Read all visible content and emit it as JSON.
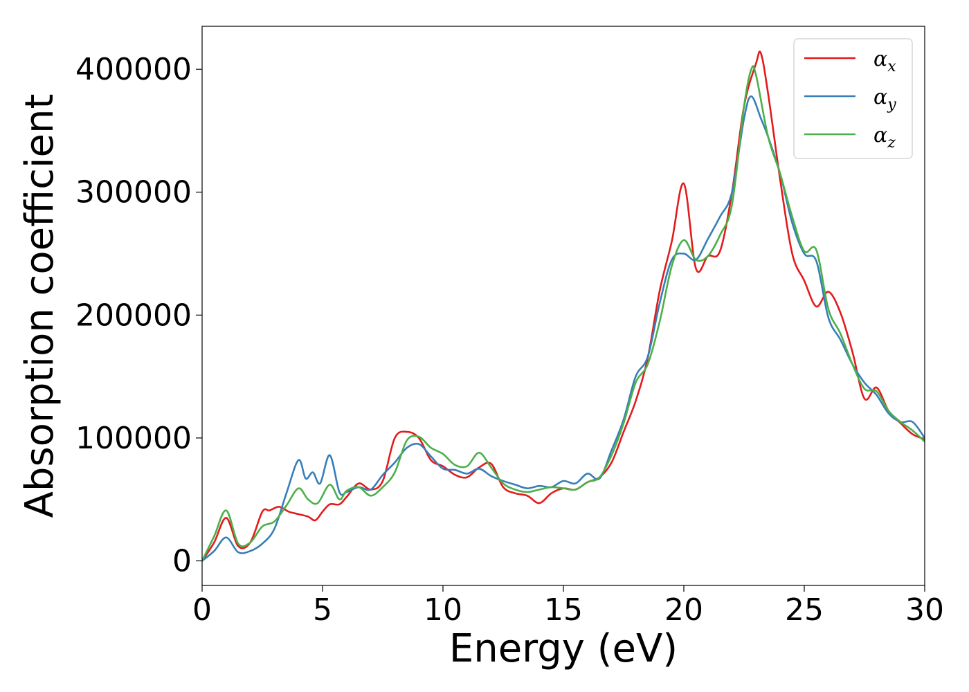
{
  "chart_data": {
    "type": "line",
    "xlabel": "Energy (eV)",
    "ylabel": "Absorption coefficient",
    "xlim": [
      0,
      30
    ],
    "ylim": [
      -20000,
      435000
    ],
    "xticks": [
      0,
      5,
      10,
      15,
      20,
      25,
      30
    ],
    "yticks": [
      0,
      100000,
      200000,
      300000,
      400000
    ],
    "grid": false,
    "legend_position": "top-right",
    "series": [
      {
        "name": "α_x",
        "symbol": "α",
        "subscript": "x",
        "color": "#e41a1c",
        "x": [
          0,
          0.5,
          1.0,
          1.5,
          2.0,
          2.5,
          2.8,
          3.2,
          3.6,
          4.0,
          4.4,
          4.7,
          5.0,
          5.3,
          5.7,
          6.0,
          6.5,
          7.0,
          7.5,
          8.0,
          8.5,
          9.0,
          9.5,
          10.0,
          10.5,
          11.0,
          11.5,
          12.0,
          12.5,
          13.0,
          13.5,
          14.0,
          14.5,
          15.0,
          15.5,
          16.0,
          16.5,
          17.0,
          17.5,
          18.0,
          18.5,
          19.0,
          19.5,
          20.0,
          20.5,
          21.0,
          21.5,
          22.0,
          22.5,
          23.0,
          23.2,
          23.5,
          24.0,
          24.5,
          25.0,
          25.5,
          26.0,
          26.5,
          27.0,
          27.5,
          28.0,
          28.5,
          29.0,
          29.5,
          30.0
        ],
        "y": [
          0,
          15000,
          35000,
          12000,
          15000,
          40000,
          41000,
          44000,
          40000,
          38000,
          36000,
          33000,
          40000,
          46000,
          46000,
          52000,
          63000,
          58000,
          65000,
          100000,
          105000,
          100000,
          82000,
          77000,
          70000,
          68000,
          76000,
          79000,
          60000,
          55000,
          53000,
          47000,
          55000,
          59000,
          58000,
          64000,
          68000,
          80000,
          105000,
          130000,
          165000,
          220000,
          260000,
          307000,
          238000,
          248000,
          252000,
          300000,
          370000,
          405000,
          413000,
          380000,
          310000,
          250000,
          228000,
          207000,
          219000,
          202000,
          170000,
          132000,
          141000,
          122000,
          112000,
          103000,
          99000
        ]
      },
      {
        "name": "α_y",
        "symbol": "α",
        "subscript": "y",
        "color": "#377eb8",
        "x": [
          0,
          0.5,
          1.0,
          1.5,
          2.0,
          2.5,
          3.0,
          3.5,
          4.0,
          4.3,
          4.6,
          4.9,
          5.3,
          5.7,
          6.0,
          6.5,
          7.0,
          7.5,
          8.0,
          8.5,
          9.0,
          9.5,
          10.0,
          10.5,
          11.0,
          11.5,
          12.0,
          12.5,
          13.0,
          13.5,
          14.0,
          14.5,
          15.0,
          15.5,
          16.0,
          16.5,
          17.0,
          17.5,
          18.0,
          18.5,
          19.0,
          19.5,
          20.0,
          20.5,
          21.0,
          21.5,
          22.0,
          22.5,
          22.8,
          23.2,
          23.5,
          24.0,
          24.5,
          25.0,
          25.5,
          26.0,
          26.5,
          27.0,
          27.5,
          28.0,
          28.5,
          29.0,
          29.5,
          30.0
        ],
        "y": [
          0,
          8000,
          19000,
          7000,
          8000,
          14000,
          26000,
          55000,
          82000,
          67000,
          72000,
          63000,
          86000,
          56000,
          56000,
          60000,
          58000,
          70000,
          80000,
          92000,
          95000,
          85000,
          75000,
          74000,
          71000,
          75000,
          69000,
          65000,
          62000,
          59000,
          61000,
          60000,
          65000,
          63000,
          71000,
          67000,
          90000,
          115000,
          150000,
          166000,
          210000,
          245000,
          250000,
          245000,
          262000,
          280000,
          300000,
          360000,
          378000,
          360000,
          345000,
          315000,
          275000,
          250000,
          244000,
          198000,
          180000,
          160000,
          145000,
          135000,
          120000,
          113000,
          113000,
          100000
        ]
      },
      {
        "name": "α_z",
        "symbol": "α",
        "subscript": "z",
        "color": "#4daf4a",
        "x": [
          0,
          0.5,
          1.0,
          1.5,
          2.0,
          2.5,
          3.0,
          3.5,
          4.0,
          4.4,
          4.8,
          5.3,
          5.7,
          6.0,
          6.5,
          7.0,
          7.5,
          8.0,
          8.5,
          9.0,
          9.5,
          10.0,
          10.5,
          11.0,
          11.5,
          12.0,
          12.5,
          13.0,
          13.5,
          14.0,
          14.5,
          15.0,
          15.5,
          16.0,
          16.5,
          17.0,
          17.5,
          18.0,
          18.5,
          19.0,
          19.5,
          20.0,
          20.5,
          21.0,
          21.5,
          22.0,
          22.5,
          22.8,
          23.0,
          23.5,
          24.0,
          24.5,
          25.0,
          25.5,
          26.0,
          26.5,
          27.0,
          27.5,
          28.0,
          28.5,
          29.0,
          29.5,
          30.0
        ],
        "y": [
          0,
          20000,
          41000,
          14000,
          15000,
          28000,
          32000,
          45000,
          59000,
          50000,
          47000,
          62000,
          50000,
          57000,
          60000,
          53000,
          60000,
          72000,
          98000,
          101000,
          92000,
          87000,
          78000,
          77000,
          88000,
          76000,
          63000,
          58000,
          56000,
          58000,
          60000,
          59000,
          58000,
          64000,
          68000,
          86000,
          112000,
          145000,
          160000,
          195000,
          240000,
          261000,
          245000,
          248000,
          265000,
          290000,
          370000,
          400000,
          395000,
          345000,
          315000,
          280000,
          252000,
          253000,
          205000,
          185000,
          160000,
          140000,
          138000,
          122000,
          113000,
          106000,
          97000
        ]
      }
    ]
  }
}
